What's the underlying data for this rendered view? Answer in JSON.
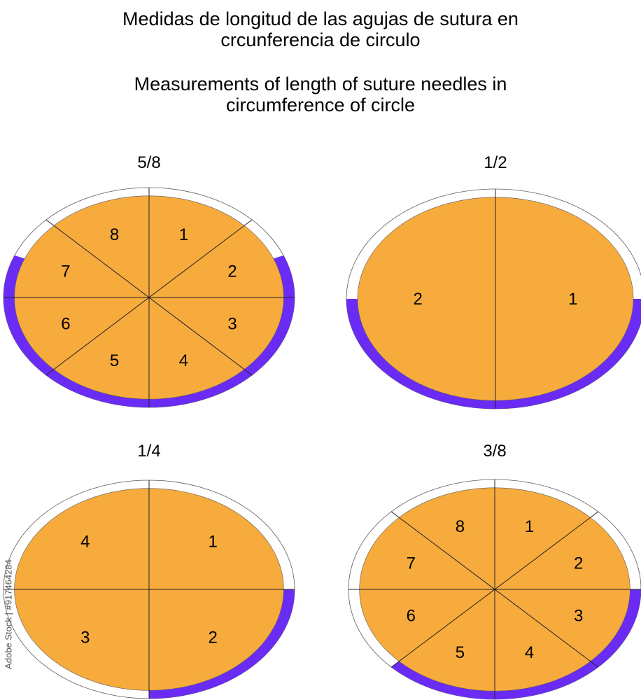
{
  "title_es": [
    "Medidas de longitud de las agujas de sutura en",
    "crcunferencia de circulo"
  ],
  "title_en": [
    "Measurements of length of suture needles in",
    "circumference of circle"
  ],
  "colors": {
    "fill": "#f7ab3d",
    "arc": "#6a2cf4",
    "ring": "#ffffff",
    "outline": "#5a5a5a"
  },
  "diagrams": [
    {
      "label": "5/8",
      "fraction": 0.625,
      "sectors": 8,
      "numbers": [
        "1",
        "2",
        "3",
        "4",
        "5",
        "6",
        "7",
        "8"
      ]
    },
    {
      "label": "1/2",
      "fraction": 0.5,
      "sectors": 2,
      "numbers": [
        "1",
        "2"
      ]
    },
    {
      "label": "1/4",
      "fraction": 0.25,
      "sectors": 4,
      "numbers": [
        "1",
        "2",
        "3",
        "4"
      ]
    },
    {
      "label": "3/8",
      "fraction": 0.375,
      "sectors": 8,
      "numbers": [
        "1",
        "2",
        "3",
        "4",
        "5",
        "6",
        "7",
        "8"
      ]
    }
  ],
  "credit": "Adobe Stock | #917464284"
}
